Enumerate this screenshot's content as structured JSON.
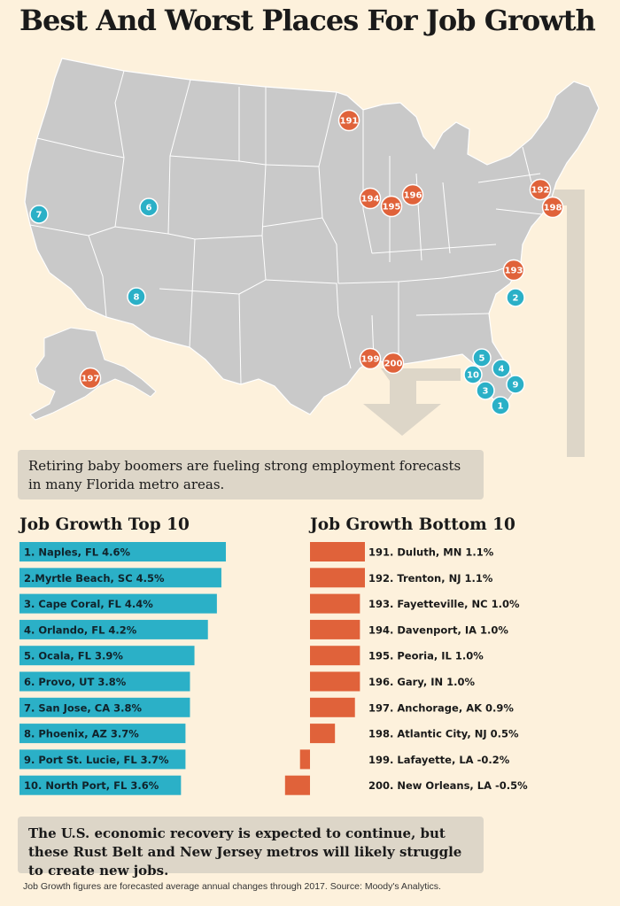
{
  "title": "Best And Worst Places For Job Growth",
  "colors": {
    "background": "#fdf1dc",
    "top_bar": "#2bb0c7",
    "bottom_bar": "#e0623a",
    "map_land": "#c9c9c9",
    "arrow": "#ddd6c8"
  },
  "map": {
    "markers": [
      {
        "rank": "1",
        "kind": "top"
      },
      {
        "rank": "2",
        "kind": "top"
      },
      {
        "rank": "3",
        "kind": "top"
      },
      {
        "rank": "4",
        "kind": "top"
      },
      {
        "rank": "5",
        "kind": "top"
      },
      {
        "rank": "6",
        "kind": "top"
      },
      {
        "rank": "7",
        "kind": "top"
      },
      {
        "rank": "8",
        "kind": "top"
      },
      {
        "rank": "9",
        "kind": "top"
      },
      {
        "rank": "10",
        "kind": "top"
      },
      {
        "rank": "191",
        "kind": "bottom"
      },
      {
        "rank": "192",
        "kind": "bottom"
      },
      {
        "rank": "193",
        "kind": "bottom"
      },
      {
        "rank": "194",
        "kind": "bottom"
      },
      {
        "rank": "195",
        "kind": "bottom"
      },
      {
        "rank": "196",
        "kind": "bottom"
      },
      {
        "rank": "197",
        "kind": "bottom"
      },
      {
        "rank": "198",
        "kind": "bottom"
      },
      {
        "rank": "199",
        "kind": "bottom"
      },
      {
        "rank": "200",
        "kind": "bottom"
      }
    ]
  },
  "note_top": "Retiring baby boomers are fueling strong employment forecasts in many Florida metro areas.",
  "note_bottom": "The U.S. economic recovery is expected to continue, but these Rust Belt and New Jersey metros will likely struggle to create new jobs.",
  "footer": "Job Growth figures are forecasted average annual changes through 2017. Source: Moody's Analytics.",
  "chart_data": [
    {
      "type": "bar",
      "title": "Job Growth Top 10",
      "orientation": "horizontal",
      "categories": [
        "1. Naples, FL",
        "2.Myrtle Beach, SC",
        "3. Cape Coral, FL",
        "4. Orlando, FL",
        "5. Ocala, FL",
        "6. Provo, UT",
        "7. San Jose, CA",
        "8. Phoenix, AZ",
        "9. Port St. Lucie, FL",
        "10. North Port, FL"
      ],
      "values": [
        4.6,
        4.5,
        4.4,
        4.2,
        3.9,
        3.8,
        3.8,
        3.7,
        3.7,
        3.6
      ],
      "value_labels": [
        "4.6%",
        "4.5%",
        "4.4%",
        "4.2%",
        "3.9%",
        "3.8%",
        "3.8%",
        "3.7%",
        "3.7%",
        "3.6%"
      ],
      "color": "#2bb0c7"
    },
    {
      "type": "bar",
      "title": "Job Growth Bottom 10",
      "orientation": "horizontal",
      "categories": [
        "191. Duluth, MN",
        "192. Trenton, NJ",
        "193. Fayetteville, NC",
        "194. Davenport, IA",
        "195. Peoria, IL",
        "196. Gary, IN",
        "197. Anchorage, AK",
        "198. Atlantic City, NJ",
        "199. Lafayette, LA",
        "200. New Orleans, LA"
      ],
      "values": [
        1.1,
        1.1,
        1.0,
        1.0,
        1.0,
        1.0,
        0.9,
        0.5,
        -0.2,
        -0.5
      ],
      "value_labels": [
        "1.1%",
        "1.1%",
        "1.0%",
        "1.0%",
        "1.0%",
        "1.0%",
        "0.9%",
        "0.5%",
        "-0.2%",
        "-0.5%"
      ],
      "color": "#e0623a"
    }
  ]
}
